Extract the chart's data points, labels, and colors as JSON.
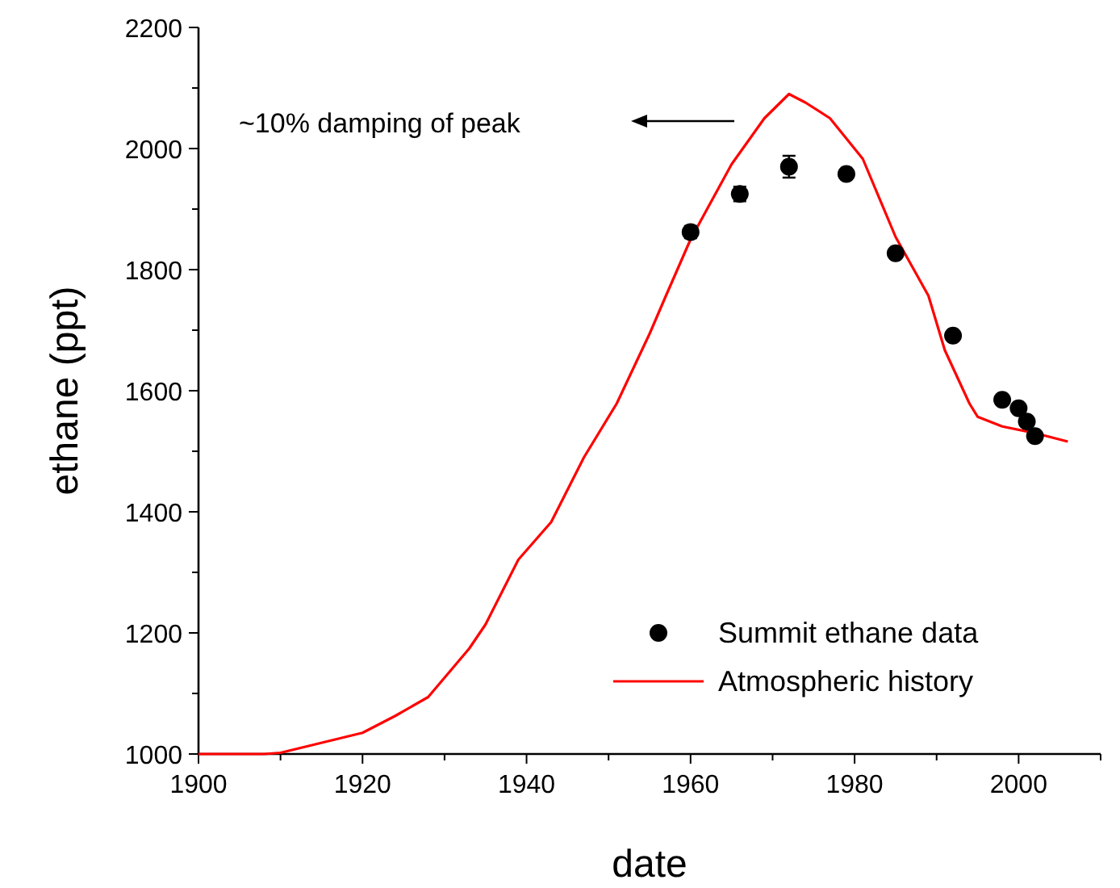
{
  "chart_data": {
    "type": "line",
    "xlabel": "date",
    "ylabel": "ethane (ppt)",
    "xlim": [
      1900,
      2010
    ],
    "ylim": [
      1000,
      2200
    ],
    "xticks": [
      1900,
      1920,
      1940,
      1960,
      1980,
      2000
    ],
    "yticks": [
      1000,
      1200,
      1400,
      1600,
      1800,
      2000,
      2200
    ],
    "grid": false,
    "legend": "bottom right",
    "annotations": [
      "~10% damping of peak"
    ],
    "series": [
      {
        "name": "Summit ethane data",
        "type": "scatter",
        "marker": "circle",
        "color": "#000000",
        "x": [
          1960,
          1966,
          1972,
          1979,
          1985,
          1992,
          1998,
          2000,
          2001,
          2002
        ],
        "values": [
          1862,
          1925,
          1970,
          1958,
          1827,
          1691,
          1585,
          1571,
          1549,
          1525
        ],
        "errors": [
          10,
          12,
          18,
          null,
          null,
          null,
          null,
          null,
          null,
          null
        ]
      },
      {
        "name": "Atmospheric history",
        "marker": "none",
        "line_style": "solid",
        "color": "#ff0000",
        "x": [
          1900,
          1908,
          1910,
          1920,
          1924,
          1928,
          1933,
          1935,
          1939,
          1943,
          1947,
          1951,
          1955,
          1957,
          1960,
          1965,
          1969,
          1972,
          1974,
          1977,
          1981,
          1985,
          1989,
          1991,
          1994,
          1995,
          1998,
          2002,
          2006
        ],
        "values": [
          1000,
          1000,
          1002,
          1035,
          1063,
          1094,
          1174,
          1214,
          1321,
          1383,
          1490,
          1579,
          1694,
          1757,
          1850,
          1974,
          2050,
          2090,
          2076,
          2050,
          1983,
          1854,
          1757,
          1667,
          1579,
          1557,
          1541,
          1530,
          1516
        ]
      }
    ]
  }
}
